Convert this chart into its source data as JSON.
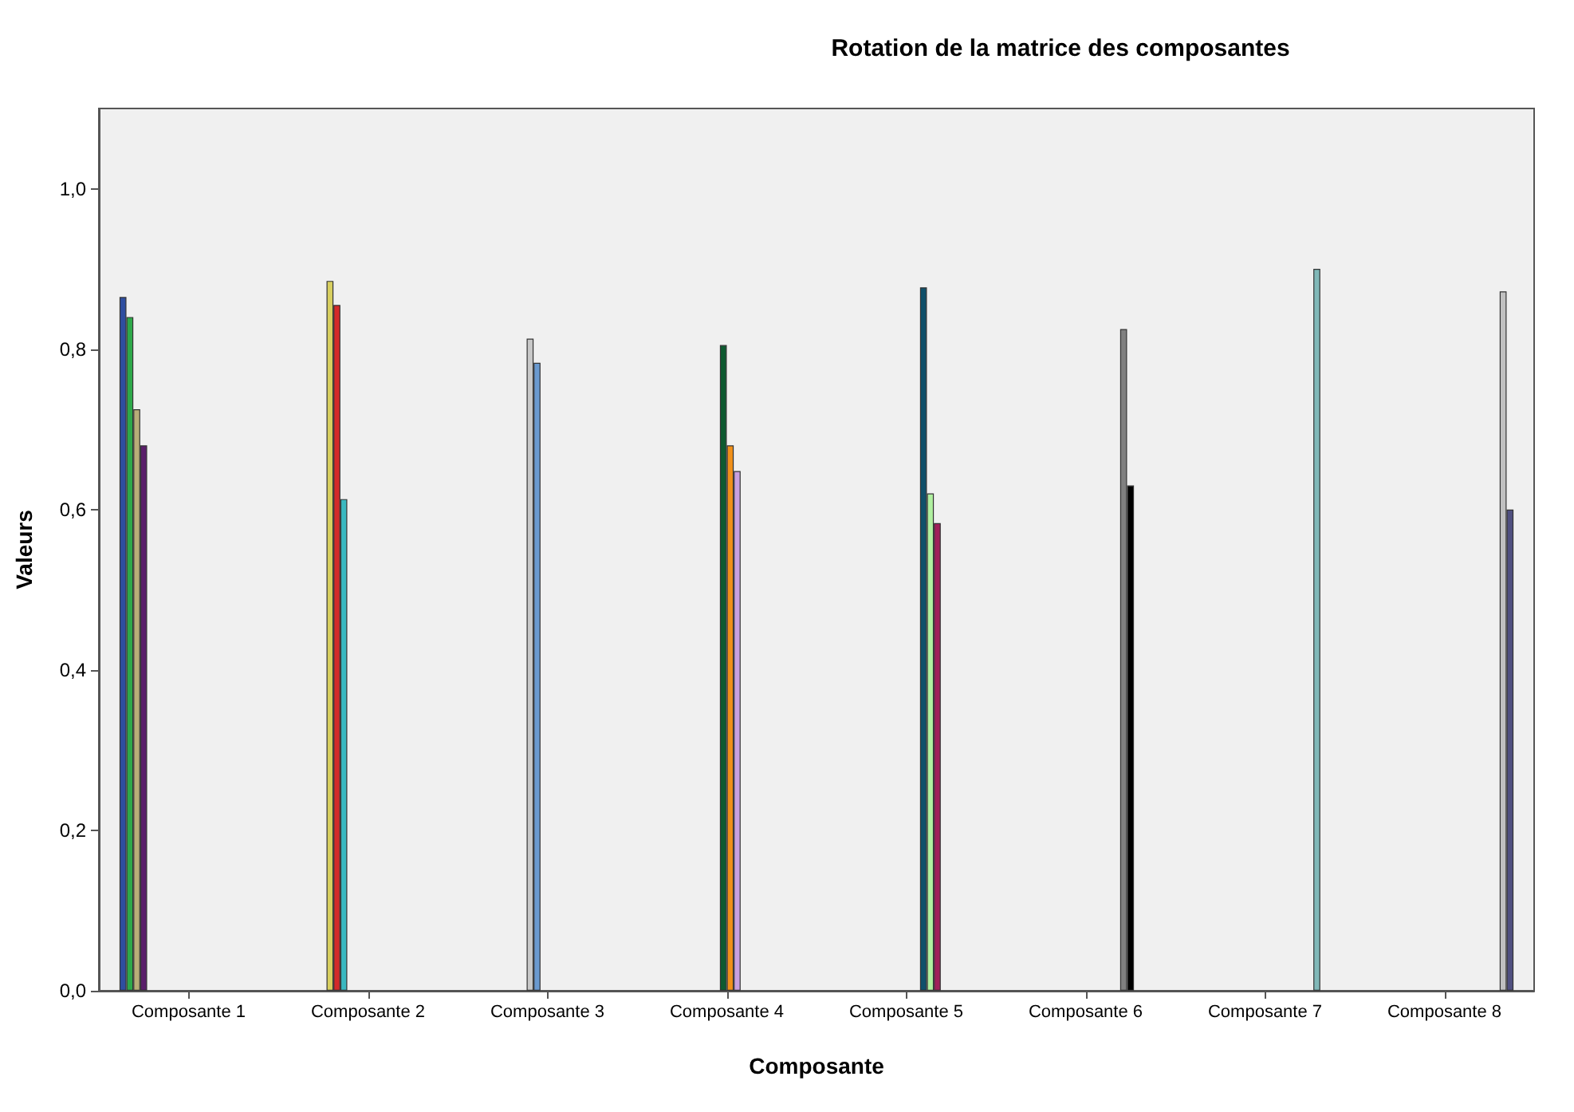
{
  "chart_data": {
    "type": "bar",
    "title": "Rotation de la matrice des composantes",
    "xlabel": "Composante",
    "ylabel": "Valeurs",
    "categories": [
      "Composante 1",
      "Composante 2",
      "Composante 3",
      "Composante 4",
      "Composante 5",
      "Composante 6",
      "Composante 7",
      "Composante 8"
    ],
    "ylim": [
      0,
      1.1
    ],
    "yticks": [
      {
        "value": 0,
        "label": "0,0"
      },
      {
        "value": 0.2,
        "label": "0,2"
      },
      {
        "value": 0.4,
        "label": "0,4"
      },
      {
        "value": 0.6,
        "label": "0,6"
      },
      {
        "value": 0.8,
        "label": "0,8"
      },
      {
        "value": 1,
        "label": "1,0"
      }
    ],
    "grid": false,
    "series": [
      {
        "color": "#2e4ea0",
        "values": [
          0.865,
          null,
          null,
          null,
          null,
          null,
          null,
          null
        ]
      },
      {
        "color": "#2ea84a",
        "values": [
          0.84,
          null,
          null,
          null,
          null,
          null,
          null,
          null
        ]
      },
      {
        "color": "#b8ae78",
        "values": [
          0.725,
          null,
          null,
          null,
          null,
          null,
          null,
          null
        ]
      },
      {
        "color": "#5a1e6a",
        "values": [
          0.68,
          null,
          null,
          null,
          null,
          null,
          null,
          null
        ]
      },
      {
        "color": "#d8cf60",
        "values": [
          null,
          0.885,
          null,
          null,
          null,
          null,
          null,
          null
        ]
      },
      {
        "color": "#d42a2a",
        "values": [
          null,
          0.855,
          null,
          null,
          null,
          null,
          null,
          null
        ]
      },
      {
        "color": "#3ab8c0",
        "values": [
          null,
          0.613,
          null,
          null,
          null,
          null,
          null,
          null
        ]
      },
      {
        "color": "#c8c8c8",
        "values": [
          null,
          null,
          0.813,
          null,
          null,
          null,
          null,
          null
        ]
      },
      {
        "color": "#6a9ad0",
        "values": [
          null,
          null,
          0.783,
          null,
          null,
          null,
          null,
          null
        ]
      },
      {
        "color": "#0e5a30",
        "values": [
          null,
          null,
          null,
          0.805,
          null,
          null,
          null,
          null
        ]
      },
      {
        "color": "#f0901a",
        "values": [
          null,
          null,
          null,
          0.68,
          null,
          null,
          null,
          null
        ]
      },
      {
        "color": "#c8a0e0",
        "values": [
          null,
          null,
          null,
          0.648,
          null,
          null,
          null,
          null
        ]
      },
      {
        "color": "#10506a",
        "values": [
          null,
          null,
          null,
          null,
          0.877,
          null,
          null,
          null
        ]
      },
      {
        "color": "#b0f0a0",
        "values": [
          null,
          null,
          null,
          null,
          0.62,
          null,
          null,
          null
        ]
      },
      {
        "color": "#a0205a",
        "values": [
          null,
          null,
          null,
          null,
          0.583,
          null,
          null,
          null
        ]
      },
      {
        "color": "#808080",
        "values": [
          null,
          null,
          null,
          null,
          null,
          0.825,
          null,
          null
        ]
      },
      {
        "color": "#000000",
        "values": [
          null,
          null,
          null,
          null,
          null,
          0.63,
          null,
          null
        ]
      },
      {
        "color": "#80b8b8",
        "values": [
          null,
          null,
          null,
          null,
          null,
          null,
          0.9,
          null
        ]
      },
      {
        "color": "#c0c0c0",
        "values": [
          null,
          null,
          null,
          null,
          null,
          null,
          null,
          0.872
        ]
      },
      {
        "color": "#505080",
        "values": [
          null,
          null,
          null,
          null,
          null,
          null,
          null,
          0.6
        ]
      }
    ]
  }
}
